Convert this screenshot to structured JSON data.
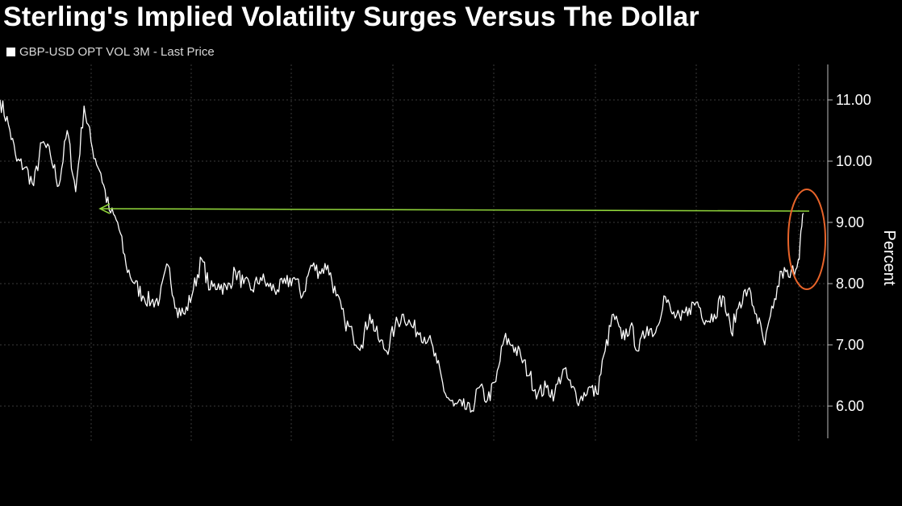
{
  "title": "Sterling's Implied Volatility Surges Versus The Dollar",
  "legend": {
    "label": "GBP-USD OPT VOL 3M - Last Price",
    "color": "#ffffff"
  },
  "colors": {
    "background": "#000000",
    "line": "#ffffff",
    "grid": "#3a3a3a",
    "arrow": "#8fd43a",
    "highlight": "#e8642a"
  },
  "chart_data": {
    "type": "line",
    "title": "Sterling's Implied Volatility Surges Versus The Dollar",
    "ylabel": "Percent",
    "xlabel": "",
    "ylim": [
      5.5,
      11.5
    ],
    "yticks": [
      "6.00",
      "7.00",
      "8.00",
      "9.00",
      "10.00",
      "11.00"
    ],
    "ytick_values": [
      6,
      7,
      8,
      9,
      10,
      11
    ],
    "grid": true,
    "legend_position": "top-left",
    "series": [
      {
        "name": "GBP-USD OPT VOL 3M - Last Price",
        "x_index": [
          0,
          5,
          10,
          15,
          20,
          25,
          30,
          35,
          40,
          45,
          50,
          55,
          60,
          65,
          70,
          75,
          80,
          85,
          90,
          95,
          100,
          105,
          110,
          115,
          120,
          125,
          130,
          135,
          140,
          145,
          150,
          155,
          160,
          165,
          170,
          175,
          180,
          185,
          190,
          195,
          200,
          205,
          210,
          215,
          220,
          225,
          230,
          235,
          240,
          245,
          250,
          255,
          260,
          265,
          270,
          275,
          280,
          285,
          290,
          295,
          300,
          305,
          310,
          315,
          320,
          325,
          330,
          335,
          340,
          345,
          350,
          355,
          360,
          365,
          370,
          375,
          380,
          385,
          390,
          395,
          400
        ],
        "values": [
          11.0,
          10.6,
          10.0,
          9.9,
          9.6,
          10.3,
          10.1,
          9.6,
          10.5,
          9.5,
          10.9,
          10.2,
          9.8,
          9.2,
          9.0,
          8.3,
          8.0,
          7.8,
          7.7,
          7.75,
          8.3,
          7.6,
          7.5,
          7.9,
          8.4,
          7.9,
          8.0,
          7.9,
          8.2,
          8.0,
          7.9,
          8.1,
          7.95,
          7.9,
          8.0,
          8.1,
          7.8,
          8.3,
          8.2,
          8.3,
          7.8,
          7.4,
          7.15,
          7.0,
          7.5,
          7.1,
          6.9,
          7.3,
          7.5,
          7.3,
          7.2,
          7.1,
          6.7,
          6.2,
          6.0,
          6.0,
          5.9,
          6.3,
          6.1,
          6.4,
          7.1,
          7.0,
          6.8,
          6.5,
          6.2,
          6.3,
          6.2,
          6.6,
          6.3,
          6.1,
          6.3,
          6.2,
          6.9,
          7.5,
          7.1,
          7.3,
          6.9,
          7.3,
          7.2,
          7.8,
          7.5
        ]
      },
      {
        "name": "",
        "x_index": [
          400,
          405,
          410,
          415,
          420,
          425,
          430,
          435,
          440,
          445,
          450,
          455,
          460,
          465,
          470,
          475,
          478
        ],
        "values": [
          7.5,
          7.4,
          7.6,
          7.7,
          7.4,
          7.5,
          7.8,
          7.2,
          7.7,
          7.9,
          7.5,
          7.0,
          7.6,
          8.2,
          8.1,
          8.4,
          9.15
        ]
      }
    ],
    "annotations": [
      {
        "type": "arrow",
        "from_index": 478,
        "to_index": 60,
        "value": 9.18,
        "color": "#8fd43a"
      },
      {
        "type": "ellipse",
        "center_index": 476,
        "value_center": 8.52,
        "color": "#e8642a"
      }
    ]
  }
}
